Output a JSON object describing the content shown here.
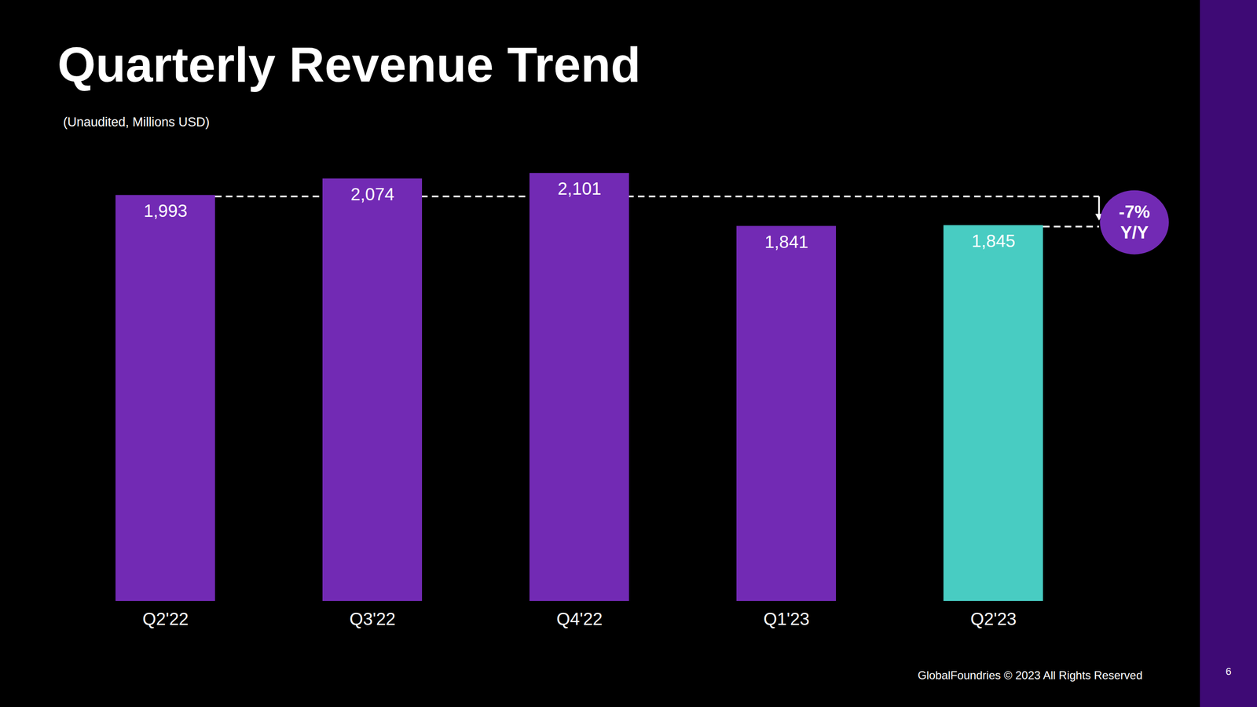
{
  "chart_data": {
    "type": "bar",
    "title": "Quarterly Revenue Trend",
    "subtitle": "(Unaudited, Millions USD)",
    "categories": [
      "Q2'22",
      "Q3'22",
      "Q4'22",
      "Q1'23",
      "Q2'23"
    ],
    "values": [
      1993,
      2074,
      2101,
      1841,
      1845
    ],
    "value_labels": [
      "1,993",
      "2,074",
      "2,101",
      "1,841",
      "1,845"
    ],
    "colors": [
      "#722ab4",
      "#722ab4",
      "#722ab4",
      "#722ab4",
      "#48ccc2"
    ],
    "ylim": [
      0,
      2101
    ],
    "yticks": [],
    "grid": false,
    "data_labels": true,
    "tick_labels": "x",
    "annotation": [
      "-7%",
      "Y/Y"
    ],
    "footer": "GlobalFoundries © 2023 All Rights Reserved",
    "page_number": "6"
  }
}
